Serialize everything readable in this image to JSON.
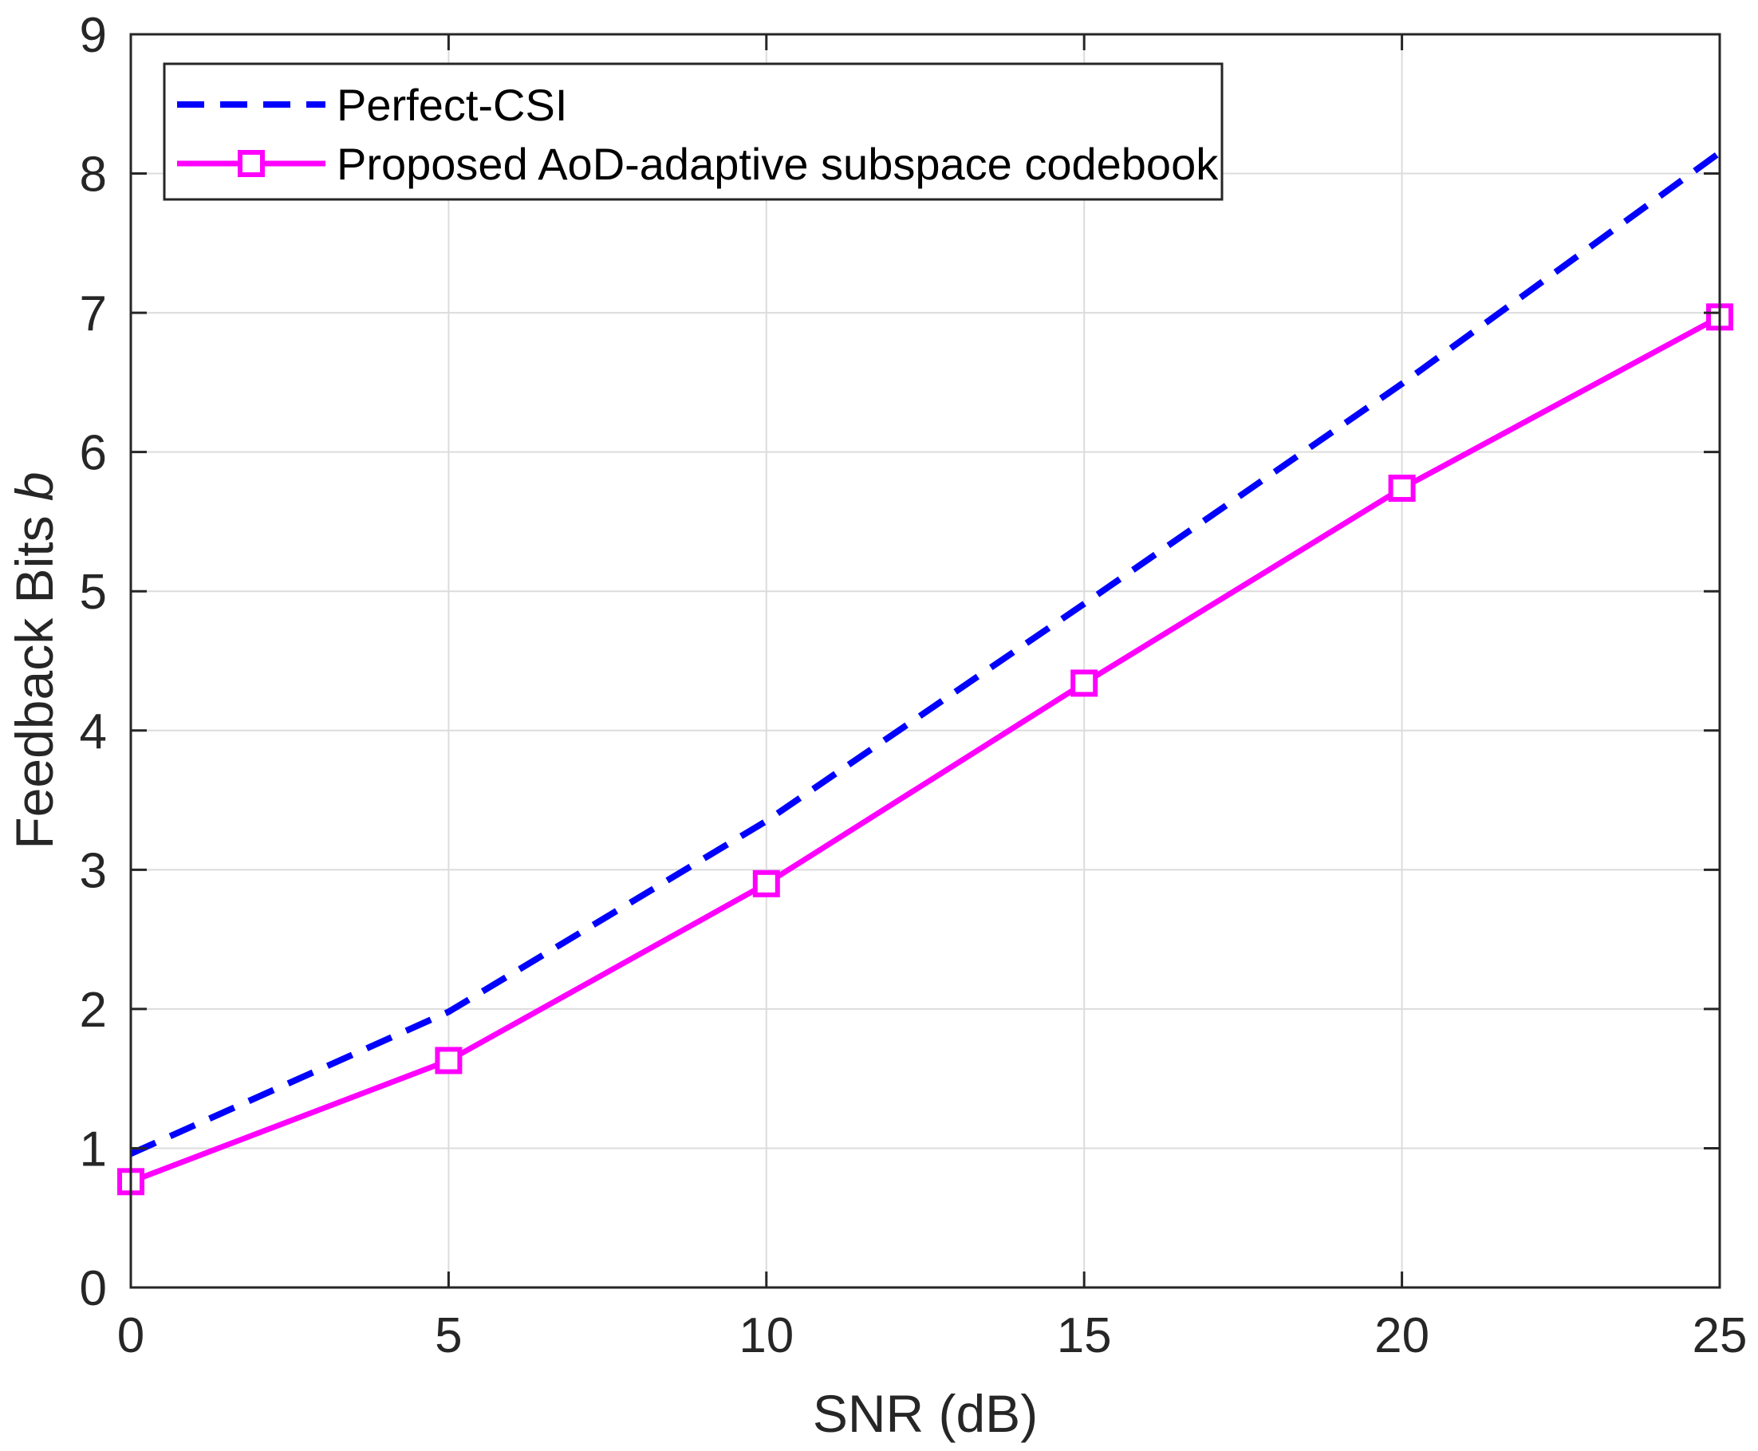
{
  "chart_data": {
    "type": "line",
    "title": "",
    "xlabel": "SNR (dB)",
    "ylabel_main": "Feedback Bits ",
    "ylabel_var": "b",
    "xlim": [
      0,
      25
    ],
    "ylim": [
      0,
      9
    ],
    "xticks": [
      "0",
      "5",
      "10",
      "15",
      "20",
      "25"
    ],
    "yticks": [
      "0",
      "1",
      "2",
      "3",
      "4",
      "5",
      "6",
      "7",
      "8",
      "9"
    ],
    "grid": true,
    "legend_position": "top-left",
    "x": [
      0,
      5,
      10,
      15,
      20,
      25
    ],
    "series": [
      {
        "name": "Perfect-CSI",
        "color": "#0000ff",
        "style": "dashed",
        "marker": "none",
        "values": [
          0.96,
          1.98,
          3.35,
          4.91,
          6.49,
          8.15
        ]
      },
      {
        "name": "Proposed AoD-adaptive subspace codebook",
        "color": "#ff00ff",
        "style": "solid",
        "marker": "square",
        "values": [
          0.76,
          1.63,
          2.9,
          4.34,
          5.74,
          6.97
        ]
      }
    ]
  }
}
